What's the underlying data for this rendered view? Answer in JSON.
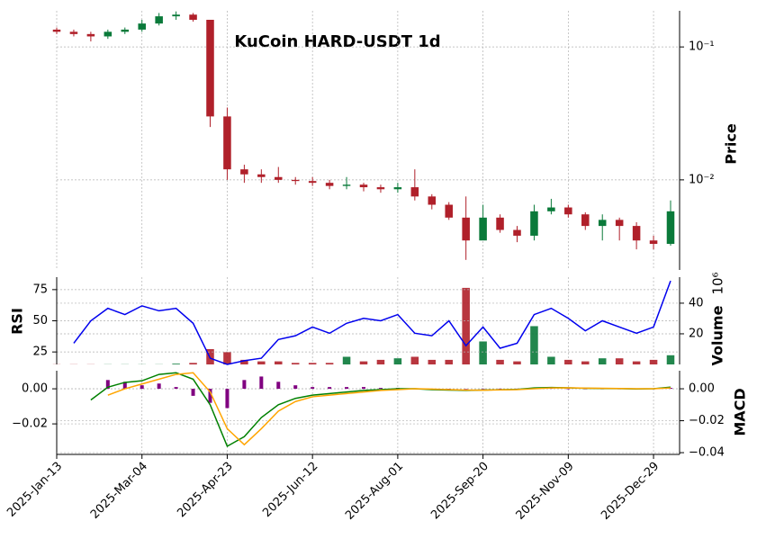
{
  "chart_data": [
    {
      "type": "candlestick",
      "title": "KuCoin HARD-USDT 1d",
      "ylabel": "Price",
      "log": true,
      "grid": true,
      "up_color": "#0a7a3a",
      "down_color": "#b0202a",
      "x": [
        "2025-Jan-13",
        "2025-Jan-23",
        "2025-Feb-02",
        "2025-Feb-12",
        "2025-Feb-22",
        "2025-Mar-04",
        "2025-Mar-14",
        "2025-Mar-24",
        "2025-Apr-03",
        "2025-Apr-13",
        "2025-Apr-23",
        "2025-May-03",
        "2025-May-13",
        "2025-May-23",
        "2025-Jun-02",
        "2025-Jun-12",
        "2025-Jun-22",
        "2025-Jul-02",
        "2025-Jul-12",
        "2025-Jul-22",
        "2025-Aug-01",
        "2025-Aug-11",
        "2025-Aug-21",
        "2025-Aug-31",
        "2025-Sep-10",
        "2025-Sep-20",
        "2025-Sep-30",
        "2025-Oct-10",
        "2025-Oct-20",
        "2025-Oct-30",
        "2025-Nov-09",
        "2025-Nov-19",
        "2025-Nov-29",
        "2025-Dec-09",
        "2025-Dec-19",
        "2025-Dec-29",
        "2026-Jan-08"
      ],
      "open": [
        0.135,
        0.13,
        0.125,
        0.12,
        0.13,
        0.135,
        0.15,
        0.17,
        0.175,
        0.16,
        0.03,
        0.012,
        0.011,
        0.0105,
        0.01,
        0.0098,
        0.0095,
        0.009,
        0.0092,
        0.0088,
        0.0085,
        0.0088,
        0.0075,
        0.0065,
        0.0052,
        0.0035,
        0.0052,
        0.0042,
        0.0038,
        0.0058,
        0.0062,
        0.0055,
        0.0045,
        0.005,
        0.0045,
        0.0035,
        0.0033
      ],
      "high": [
        0.14,
        0.135,
        0.13,
        0.135,
        0.14,
        0.16,
        0.18,
        0.185,
        0.18,
        0.16,
        0.035,
        0.013,
        0.012,
        0.0125,
        0.0105,
        0.0105,
        0.01,
        0.0105,
        0.0095,
        0.0092,
        0.0095,
        0.012,
        0.0078,
        0.0068,
        0.0075,
        0.0065,
        0.0055,
        0.0045,
        0.0065,
        0.0072,
        0.0065,
        0.0057,
        0.0055,
        0.0052,
        0.0048,
        0.0038,
        0.007
      ],
      "low": [
        0.125,
        0.12,
        0.11,
        0.115,
        0.125,
        0.13,
        0.145,
        0.16,
        0.155,
        0.025,
        0.01,
        0.0095,
        0.0095,
        0.0095,
        0.0092,
        0.009,
        0.0085,
        0.0085,
        0.0082,
        0.008,
        0.008,
        0.007,
        0.006,
        0.005,
        0.0025,
        0.0045,
        0.004,
        0.0034,
        0.0035,
        0.0055,
        0.0052,
        0.0042,
        0.0035,
        0.0035,
        0.003,
        0.003,
        0.0032
      ],
      "close": [
        0.13,
        0.125,
        0.12,
        0.13,
        0.135,
        0.15,
        0.17,
        0.175,
        0.16,
        0.03,
        0.012,
        0.011,
        0.0105,
        0.01,
        0.0098,
        0.0095,
        0.009,
        0.0092,
        0.0088,
        0.0085,
        0.0088,
        0.0075,
        0.0065,
        0.0052,
        0.0035,
        0.0052,
        0.0042,
        0.0038,
        0.0058,
        0.0062,
        0.0055,
        0.0045,
        0.005,
        0.0045,
        0.0035,
        0.0033,
        0.0058
      ],
      "ylim": [
        0.0021,
        0.187
      ],
      "yticks": [
        {
          "value": 0.1,
          "label": "10⁻¹"
        },
        {
          "value": 0.01,
          "label": "10⁻²"
        }
      ],
      "xticks": [
        "2025-Jan-13",
        "2025-Mar-04",
        "2025-Apr-23",
        "2025-Jun-12",
        "2025-Aug-01",
        "2025-Sep-20",
        "2025-Nov-09",
        "2025-Dec-29"
      ]
    },
    {
      "type": "line",
      "ylabel": "RSI",
      "color": "#0000ee",
      "values": [
        null,
        32,
        50,
        60,
        55,
        62,
        58,
        60,
        48,
        20,
        15,
        18,
        20,
        35,
        38,
        45,
        40,
        48,
        52,
        50,
        55,
        40,
        38,
        50,
        30,
        45,
        28,
        32,
        55,
        60,
        52,
        42,
        50,
        45,
        40,
        45,
        82
      ],
      "ylim": [
        15,
        85
      ],
      "yticks": [
        25,
        50,
        75
      ]
    },
    {
      "type": "bar",
      "ylabel": "Volume",
      "scale_label": "10⁶",
      "values": [
        0.1,
        0.1,
        0.1,
        0.1,
        0.1,
        0.1,
        0.1,
        0.5,
        1,
        10,
        8,
        3,
        2,
        2,
        1,
        1,
        1,
        5,
        2,
        3,
        4,
        5,
        3,
        3,
        50,
        15,
        3,
        2,
        25,
        5,
        3,
        2,
        4,
        4,
        2,
        3,
        6
      ],
      "ylim": [
        0,
        57
      ],
      "yticks": [
        20,
        40
      ]
    },
    {
      "type": "line",
      "ylabel": "MACD",
      "series": [
        {
          "color": "#008000",
          "values": [
            null,
            null,
            -0.007,
            0.001,
            0.004,
            0.005,
            0.009,
            0.01,
            0.006,
            -0.01,
            -0.036,
            -0.03,
            -0.018,
            -0.01,
            -0.006,
            -0.004,
            -0.003,
            -0.002,
            -0.001,
            -0.0005,
            0,
            0,
            -0.0005,
            -0.0008,
            -0.001,
            -0.0008,
            -0.0006,
            -0.0004,
            0.0005,
            0.0008,
            0.0006,
            0.0003,
            0.0002,
            0.0001,
            -0.0001,
            0,
            0.001
          ],
          "axis": "y2"
        },
        {
          "color": "#ffa500",
          "values": [
            null,
            null,
            null,
            -0.004,
            0,
            0.003,
            0.006,
            0.009,
            0.01,
            -0.002,
            -0.025,
            -0.035,
            -0.025,
            -0.014,
            -0.008,
            -0.005,
            -0.004,
            -0.003,
            -0.002,
            -0.001,
            -0.0005,
            0,
            -0.0002,
            -0.0005,
            -0.0008,
            -0.0009,
            -0.0007,
            -0.0005,
            0,
            0.0005,
            0.0006,
            0.0004,
            0.0003,
            0.0002,
            0,
            0,
            0.0005
          ],
          "axis": "y2"
        }
      ],
      "histogram": {
        "color": "#800080",
        "values": [
          null,
          null,
          null,
          0.005,
          0.004,
          0.002,
          0.003,
          0.001,
          -0.004,
          -0.008,
          -0.011,
          0.005,
          0.007,
          0.004,
          0.002,
          0.001,
          0.001,
          0.001,
          0.001,
          0.0005,
          0.0005,
          0,
          -0.0003,
          -0.0003,
          -0.0002,
          0.0001,
          0.0001,
          0.0001,
          0.0005,
          0.0003,
          0,
          -0.0001,
          -0.0001,
          -0.0001,
          -0.0001,
          0,
          0.0005
        ]
      },
      "ylim": [
        -0.0374,
        0.0103
      ],
      "yticks": [
        {
          "value": -0.02,
          "label": "−0.02"
        },
        {
          "value": 0,
          "label": "0.00"
        }
      ],
      "y2lim": [
        -0.0411,
        0.0113
      ],
      "y2ticks": [
        {
          "value": 0,
          "label": "0.00"
        },
        {
          "value": -0.02,
          "label": "−0.02"
        },
        {
          "value": -0.04,
          "label": "−0.04"
        }
      ]
    }
  ]
}
